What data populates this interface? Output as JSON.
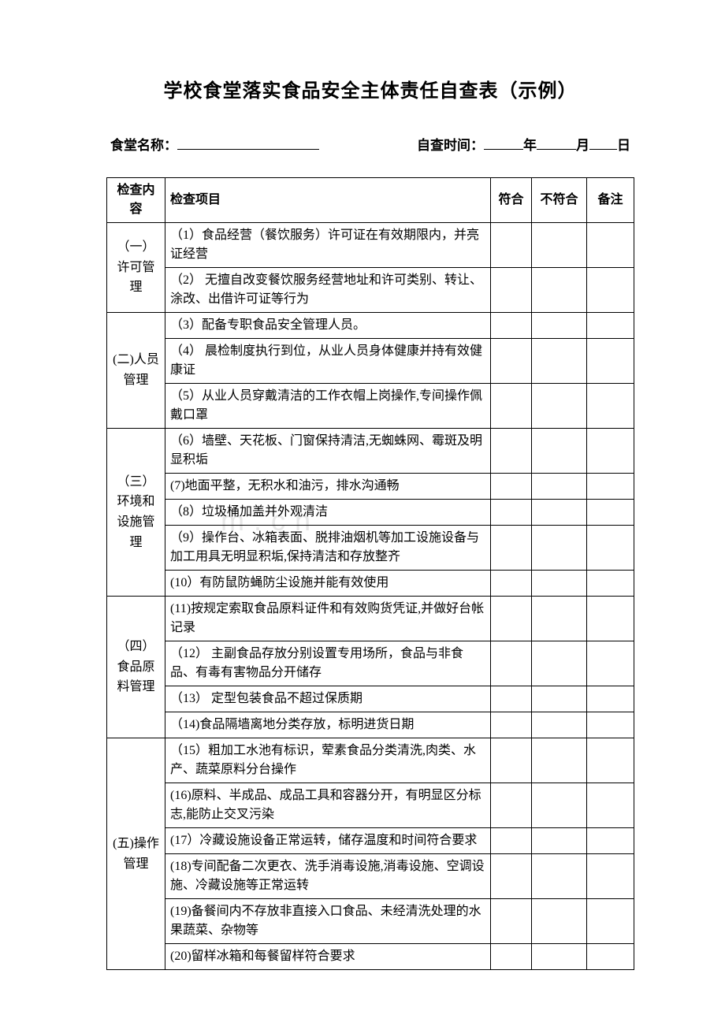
{
  "title": "学校食堂落实食品安全主体责任自查表（示例）",
  "meta": {
    "name_label": "食堂名称：",
    "time_label": "自查时间：",
    "year_suffix": "年",
    "month_suffix": "月",
    "day_suffix": "日"
  },
  "headers": {
    "category": "检查内容",
    "item": "检查项目",
    "conform": "符合",
    "nonconform": "不符合",
    "remark": "备注"
  },
  "sections": [
    {
      "category": "（一）许可管理",
      "items": [
        "（1）食品经营（餐饮服务）许可证在有效期限内，并亮证经营",
        "（2） 无擅自改变餐饮服务经营地址和许可类别、转让、涂改、出借许可证等行为"
      ]
    },
    {
      "category": "(二)人员管理",
      "items": [
        "（3）配备专职食品安全管理人员。",
        "（4） 晨检制度执行到位，从业人员身体健康并持有效健康证",
        "（5）从业人员穿戴清洁的工作衣帽上岗操作,专间操作佩戴口罩"
      ]
    },
    {
      "category": "（三）环境和设施管理",
      "items": [
        "（6）墙壁、天花板、门窗保持清洁,无蜘蛛网、霉斑及明显积垢",
        "(7)地面平整，无积水和油污，排水沟通畅",
        "（8）垃圾桶加盖并外观清洁",
        "（9）操作台、冰箱表面、脱排油烟机等加工设施设备与加工用具无明显积垢,保持清洁和存放整齐",
        "(10）有防鼠防蝇防尘设施并能有效使用"
      ]
    },
    {
      "category": "（四）食品原料管理",
      "items": [
        "(11)按规定索取食品原料证件和有效购货凭证,并做好台帐记录",
        "（12） 主副食品存放分别设置专用场所，食品与非食品、有毒有害物品分开储存",
        "（13） 定型包装食品不超过保质期",
        "（14)食品隔墙离地分类存放，标明进货日期"
      ]
    },
    {
      "category": "(五)操作管理",
      "items": [
        "（15）粗加工水池有标识，荤素食品分类清洗,肉类、水产、蔬菜原料分台操作",
        "(16)原料、半成品、成品工具和容器分开，有明显区分标志,能防止交叉污染",
        "(17）冷藏设施设备正常运转，储存温度和时间符合要求",
        "(18)专间配备二次更衣、洗手消毒设施,消毒设施、空调设施、冷藏设施等正常运转",
        "(19)备餐间内不存放非直接入口食品、未经清洗处理的水果蔬菜、杂物等",
        "(20)留样冰箱和每餐留样符合要求"
      ]
    }
  ],
  "watermark": "m.cn",
  "colors": {
    "text": "#000000",
    "border": "#000000",
    "background": "#ffffff",
    "watermark": "#e8e8e8"
  }
}
